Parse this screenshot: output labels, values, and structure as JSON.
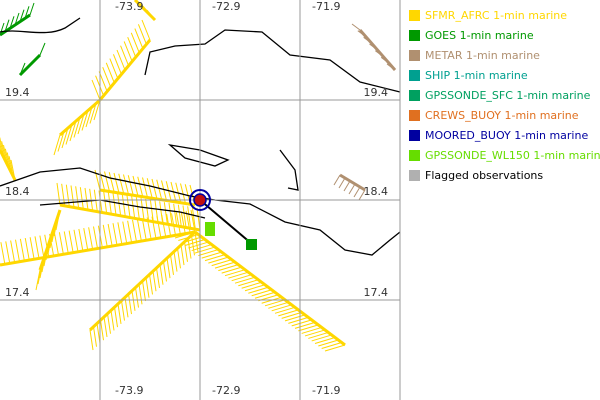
{
  "map": {
    "lon_labels_top": [
      "-73.9",
      "-72.9",
      "-71.9"
    ],
    "lon_labels_bottom": [
      "-73.9",
      "-72.9",
      "-71.9"
    ],
    "lat_labels": [
      "19.4",
      "18.4",
      "17.4"
    ],
    "legend": [
      {
        "label": "SFMR_AFRC 1-min marine",
        "color": "#ffd700"
      },
      {
        "label": "GOES 1-min marine",
        "color": "#009900"
      },
      {
        "label": "METAR 1-min marine",
        "color": "#b09070"
      },
      {
        "label": "SHIP 1-min marine",
        "color": "#00a090"
      },
      {
        "label": "GPSSONDE_SFC 1-min marine",
        "color": "#00a060"
      },
      {
        "label": "CREWS_BUOY 1-min marine",
        "color": "#e07020"
      },
      {
        "label": "MOORED_BUOY 1-min marine",
        "color": "#0000a0"
      },
      {
        "label": "GPSSONDE_WL150 1-min marine",
        "color": "#66dd00"
      },
      {
        "label": "Flagged observations",
        "color": "#b0b0b0"
      }
    ]
  }
}
